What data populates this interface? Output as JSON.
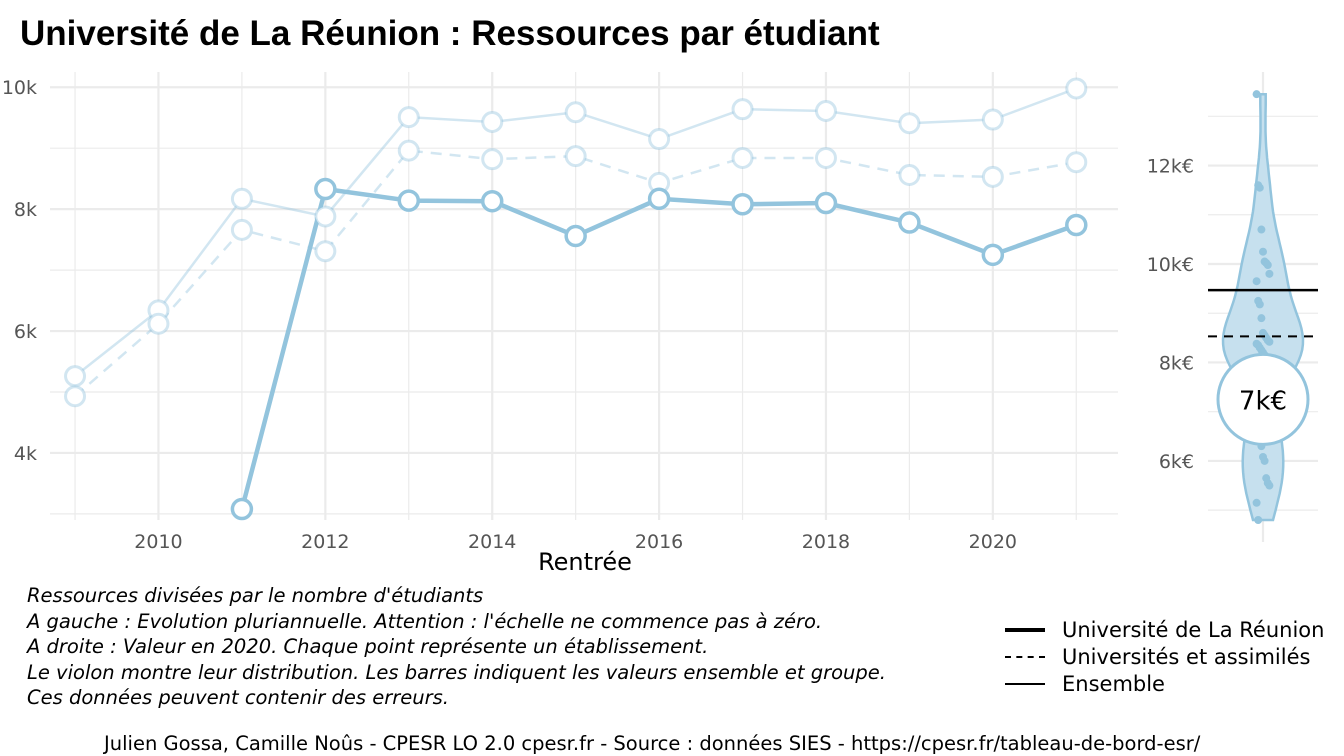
{
  "title": "Université de La Réunion  :  Ressources par étudiant",
  "xlabel": "Rentrée",
  "notes": [
    "Ressources divisées par le nombre d'étudiants",
    "A gauche : Evolution pluriannuelle. Attention : l'échelle ne commence pas à zéro.",
    "A droite : Valeur en 2020. Chaque point représente un établissement.",
    "Le violon montre leur distribution. Les barres indiquent les valeurs ensemble et groupe.",
    "Ces données peuvent contenir des erreurs."
  ],
  "legend": [
    {
      "label": "Université de La Réunion",
      "style": "thick-solid"
    },
    {
      "label": "Universités et assimilés",
      "style": "dashed"
    },
    {
      "label": "Ensemble",
      "style": "solid"
    }
  ],
  "credits": "Julien Gossa, Camille Noûs - CPESR LO 2.0 cpesr.fr - Source : données SIES - https://cpesr.fr/tableau-de-bord-esr/",
  "colors": {
    "series": "#93c4dd",
    "violin_fill": "#c6e0ee",
    "grid": "#ebebeb",
    "text": "#000000"
  },
  "chart_data": [
    {
      "type": "line",
      "title": "Université de La Réunion  :  Ressources par étudiant",
      "xlabel": "Rentrée",
      "ylabel": "",
      "xlim": [
        2008.7,
        2021.5
      ],
      "ylim": [
        2900,
        10250
      ],
      "x_ticks": [
        2010,
        2012,
        2014,
        2016,
        2018,
        2020
      ],
      "y_ticks": [
        4000,
        6000,
        8000,
        10000
      ],
      "y_tick_labels": [
        "4k",
        "6k",
        "8k",
        "10k"
      ],
      "grid": true,
      "legend_position": "bottom-right",
      "series": [
        {
          "name": "Ensemble",
          "style": "solid",
          "x": [
            2009,
            2010,
            2011,
            2012,
            2013,
            2014,
            2015,
            2016,
            2017,
            2018,
            2019,
            2020,
            2021
          ],
          "y": [
            5260,
            6340,
            8170,
            7880,
            9510,
            9430,
            9590,
            9150,
            9640,
            9610,
            9410,
            9470,
            9980
          ]
        },
        {
          "name": "Universités et assimilés",
          "style": "dashed",
          "x": [
            2009,
            2010,
            2011,
            2012,
            2013,
            2014,
            2015,
            2016,
            2017,
            2018,
            2019,
            2020,
            2021
          ],
          "y": [
            4930,
            6120,
            7660,
            7310,
            8960,
            8820,
            8870,
            8430,
            8840,
            8840,
            8560,
            8530,
            8770
          ]
        },
        {
          "name": "Université de La Réunion",
          "style": "thick-solid",
          "x": [
            2011,
            2012,
            2013,
            2014,
            2015,
            2016,
            2017,
            2018,
            2019,
            2020,
            2021
          ],
          "y": [
            3080,
            8330,
            8140,
            8130,
            7560,
            8170,
            8080,
            8100,
            7780,
            7250,
            7740
          ]
        }
      ]
    },
    {
      "type": "violin",
      "ylim": [
        4800,
        13900
      ],
      "y_ticks": [
        6000,
        8000,
        10000,
        12000
      ],
      "y_tick_labels": [
        "6k€",
        "8k€",
        "10k€",
        "12k€"
      ],
      "highlight_value": 7250,
      "highlight_label": "7k€",
      "ensemble_value": 9470,
      "group_value": 8530,
      "points": [
        13450,
        11600,
        11550,
        10700,
        10250,
        10050,
        10020,
        9980,
        9800,
        9650,
        9250,
        9180,
        8900,
        8600,
        8550,
        8500,
        8450,
        8420,
        8380,
        8350,
        8300,
        8250,
        8200,
        8150,
        8100,
        8000,
        7900,
        6900,
        6600,
        6400,
        6300,
        6080,
        6000,
        5650,
        5550,
        5500,
        5150,
        4800
      ]
    }
  ]
}
